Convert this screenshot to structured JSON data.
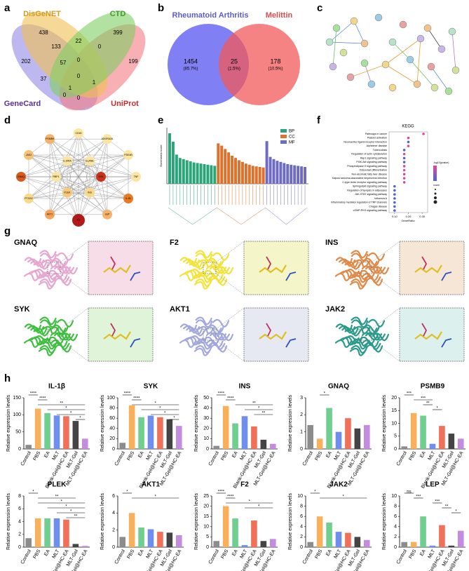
{
  "figure": {
    "panel_labels": [
      "a",
      "b",
      "c",
      "d",
      "e",
      "f",
      "g",
      "h"
    ],
    "venn4": {
      "sets": [
        {
          "name": "DisGeNET",
          "color": "#f0bf52"
        },
        {
          "name": "CTD",
          "color": "#7fcf62"
        },
        {
          "name": "GeneCard",
          "color": "#9189e6"
        },
        {
          "name": "UniProt",
          "color": "#f47b83"
        }
      ],
      "counts": [
        438,
        399,
        133,
        22,
        0,
        202,
        57,
        0,
        199,
        37,
        0,
        1,
        1,
        0,
        0
      ]
    },
    "venn2": {
      "sets": [
        {
          "name": "Rheumatoid Arthritis",
          "color": "#6a6af2"
        },
        {
          "name": "Melittin",
          "color": "#f25a5a"
        }
      ],
      "counts": [
        1454,
        25,
        178
      ],
      "percents": [
        "(85.7%)",
        "(1.5%)",
        "(10.5%)"
      ]
    },
    "network_d": {
      "nodes": [
        "CD40",
        "ADORA2A",
        "PDE4B",
        "TNF",
        "IL1B",
        "LEP",
        "F2",
        "AKT1",
        "PTGS2",
        "GNAQ",
        "JAK2",
        "PSMB9",
        "SYK",
        "INS",
        "PLEK",
        "RBP1",
        "IL10RA",
        "ELANE"
      ]
    },
    "go": {
      "ylabel": "Enrichment score",
      "series": [
        {
          "name": "BP",
          "color": "#2aa57a",
          "values": [
            9,
            7.5,
            5.2,
            4.6,
            4.4,
            4.2,
            4,
            3.8,
            3.7,
            3.6,
            3.5,
            3.4,
            3.3,
            3.2
          ]
        },
        {
          "name": "CC",
          "color": "#e0702a",
          "values": [
            7.2,
            6.8,
            6.2,
            5.6,
            5,
            4.6,
            4.2,
            3.9,
            3.6,
            3.4,
            3.2,
            3.1,
            3,
            2.9
          ]
        },
        {
          "name": "MF",
          "color": "#6e6cc0",
          "values": [
            7.6,
            4.8,
            4.4,
            4.1,
            3.9,
            3.7,
            3.5,
            3.4,
            3.3,
            3.2,
            3.1,
            3
          ]
        }
      ]
    },
    "kegg": {
      "title": "KEGG",
      "xlabel": "GeneRatio",
      "xlim": [
        0.06,
        0.34
      ],
      "xticks": [
        {
          "value": 0.1,
          "label": "0.10"
        },
        {
          "value": 0.2,
          "label": "0.20"
        },
        {
          "value": 0.3,
          "label": "0.30"
        }
      ],
      "legend_color_title": "-log10(pvalue)",
      "legend_size_title": "count",
      "pathways": [
        "Pathways in cancer",
        "Platelet activation",
        "Neuroactive ligand-receptor interaction",
        "Alzheimer disease",
        "Tuberculosis",
        "Regulation of actin cytoskeleton",
        "Rap1 signaling pathway",
        "PI3K-Akt signaling pathway",
        "Phospholipase D signaling pathway",
        "Osteoclast differentiation",
        "Non-alcoholic fatty liver disease",
        "Kaposi sarcoma-associated herpesvirus infection",
        "C-type lectin receptor signaling pathway",
        "Sphingolipid signaling pathway",
        "Regulation of lipolysis in adipocytes",
        "JAK-STAT signaling pathway",
        "Influenza A",
        "Inflammatory mediator regulation of TRP channels",
        "Chagas disease",
        "cGMP-PKG signaling pathway"
      ],
      "gene_ratio": [
        0.31,
        0.2,
        0.2,
        0.2,
        0.17,
        0.17,
        0.17,
        0.17,
        0.17,
        0.17,
        0.17,
        0.17,
        0.17,
        0.1,
        0.1,
        0.1,
        0.1,
        0.1,
        0.1,
        0.1
      ],
      "colors": [
        "#e8459a",
        "#d9488f",
        "#5060d0",
        "#d0508a",
        "#5b5fd0",
        "#c75495",
        "#5a60d0",
        "#4b63d2",
        "#d84b8c",
        "#c55896",
        "#d84a8d",
        "#cc5393",
        "#d6488e",
        "#4a66d4",
        "#4a66d4",
        "#4a66d4",
        "#4a66d4",
        "#4a66d4",
        "#4a66d4",
        "#4a66d4"
      ]
    },
    "docking": [
      "GNAQ",
      "F2",
      "INS",
      "SYK",
      "AKT1",
      "JAK2"
    ]
  },
  "chart_data": [
    {
      "type": "bar",
      "title": "IL-1β",
      "ylabel": "Relative expression levels",
      "categories": [
        "Control",
        "PBS",
        "EA",
        "MLT",
        "Blank-Gel@HC-EA",
        "MLT-Gel",
        "MLT-Gel@HC-EA"
      ],
      "values": [
        12,
        118,
        105,
        98,
        96,
        82,
        30
      ],
      "ylim": [
        0,
        150
      ],
      "yticks": [
        0,
        50,
        100,
        150
      ],
      "significance": [
        {
          "label": "****",
          "from": 0,
          "to": 1
        },
        {
          "label": "****",
          "from": 1,
          "to": 2
        },
        {
          "label": "**",
          "from": 1,
          "to": 6
        },
        {
          "label": "*",
          "from": 2,
          "to": 6
        },
        {
          "label": "*",
          "from": 3,
          "to": 6
        },
        {
          "label": "*",
          "from": 5,
          "to": 6
        }
      ]
    },
    {
      "type": "bar",
      "title": "SYK",
      "ylabel": "Relative expression levels",
      "categories": [
        "Control",
        "PBS",
        "EA",
        "MLT",
        "Blank-Gel@HC-EA",
        "MLT-Gel",
        "MLT-Gel@HC-EA"
      ],
      "values": [
        12,
        85,
        62,
        65,
        62,
        58,
        45
      ],
      "ylim": [
        0,
        100
      ],
      "yticks": [
        0,
        20,
        40,
        60,
        80,
        100
      ],
      "significance": [
        {
          "label": "****",
          "from": 0,
          "to": 1
        },
        {
          "label": "****",
          "from": 1,
          "to": 2
        },
        {
          "label": "*",
          "from": 1,
          "to": 6
        },
        {
          "label": "*",
          "from": 2,
          "to": 6
        },
        {
          "label": "*",
          "from": 3,
          "to": 6
        },
        {
          "label": "*",
          "from": 5,
          "to": 6
        }
      ]
    },
    {
      "type": "bar",
      "title": "INS",
      "ylabel": "Relative expression levels",
      "categories": [
        "Control",
        "PBS",
        "EA",
        "MLT",
        "Blank-Gel@HC-EA",
        "MLT-Gel",
        "MLT-Gel@HC-EA"
      ],
      "values": [
        3,
        42,
        25,
        32,
        22,
        9,
        5
      ],
      "ylim": [
        0,
        50
      ],
      "yticks": [
        0,
        10,
        20,
        30,
        40,
        50
      ],
      "significance": [
        {
          "label": "****",
          "from": 0,
          "to": 1
        },
        {
          "label": "****",
          "from": 1,
          "to": 2
        },
        {
          "label": "**",
          "from": 2,
          "to": 6
        },
        {
          "label": "*",
          "from": 3,
          "to": 6
        },
        {
          "label": "**",
          "from": 4,
          "to": 6
        }
      ]
    },
    {
      "type": "bar",
      "title": "GNAQ",
      "ylabel": "Relative expression levels",
      "categories": [
        "Control",
        "PBS",
        "EA",
        "MLT",
        "Blank-Gel@HC-EA",
        "MLT-Gel",
        "MLT-Gel@HC-EA"
      ],
      "values": [
        1.4,
        0.6,
        2.4,
        1.0,
        1.8,
        1.2,
        1.4
      ],
      "ylim": [
        0,
        3
      ],
      "yticks": [
        0,
        1,
        2,
        3
      ],
      "significance": [
        {
          "label": "*",
          "from": 1,
          "to": 2
        }
      ]
    },
    {
      "type": "bar",
      "title": "PSMB9",
      "ylabel": "Relative expression levels",
      "categories": [
        "Control",
        "PBS",
        "EA",
        "MLT",
        "Blank-Gel@HC-EA",
        "MLT-Gel",
        "MLT-Gel@HC-EA"
      ],
      "values": [
        1,
        14,
        13,
        2,
        9,
        6,
        4
      ],
      "ylim": [
        0,
        20
      ],
      "yticks": [
        0,
        5,
        10,
        15,
        20
      ],
      "significance": [
        {
          "label": "***",
          "from": 0,
          "to": 1
        },
        {
          "label": "***",
          "from": 1,
          "to": 3
        },
        {
          "label": "**",
          "from": 2,
          "to": 3
        },
        {
          "label": "*",
          "from": 3,
          "to": 4
        }
      ]
    },
    {
      "type": "bar",
      "title": "PLEK",
      "ylabel": "Relative expression levels",
      "categories": [
        "Control",
        "PBS",
        "EA",
        "MLT",
        "Blank-Gel@HC-EA",
        "MLT-Gel",
        "MLT-Gel@HC-EA"
      ],
      "values": [
        1.4,
        4.5,
        4.5,
        4.5,
        4.3,
        0.5,
        0.2
      ],
      "ylim": [
        0,
        8
      ],
      "yticks": [
        0,
        2,
        4,
        6,
        8
      ],
      "significance": [
        {
          "label": "*",
          "from": 0,
          "to": 1
        },
        {
          "label": "**",
          "from": 1,
          "to": 5
        },
        {
          "label": "*",
          "from": 1,
          "to": 6
        },
        {
          "label": "*",
          "from": 2,
          "to": 6
        },
        {
          "label": "*",
          "from": 3,
          "to": 6
        },
        {
          "label": "**",
          "from": 4,
          "to": 6
        }
      ]
    },
    {
      "type": "bar",
      "title": "AKT1",
      "ylabel": "Relative expression levels",
      "categories": [
        "Control",
        "PBS",
        "EA",
        "MLT",
        "Blank-Gel@HC-EA",
        "MLT-Gel",
        "MLT-Gel@HC-EA"
      ],
      "values": [
        1.2,
        4,
        2.3,
        2.1,
        1.8,
        1.7,
        1.4
      ],
      "ylim": [
        0,
        6
      ],
      "yticks": [
        0,
        2,
        4,
        6
      ],
      "significance": [
        {
          "label": "*",
          "from": 0,
          "to": 1
        },
        {
          "label": "*",
          "from": 1,
          "to": 6
        }
      ]
    },
    {
      "type": "bar",
      "title": "F2",
      "ylabel": "Relative expression levels",
      "categories": [
        "Control",
        "PBS",
        "EA",
        "MLT",
        "Blank-Gel@HC-EA",
        "MLT-Gel",
        "MLT-Gel@HC-EA"
      ],
      "values": [
        3,
        20,
        14,
        1,
        13,
        3,
        4
      ],
      "ylim": [
        0,
        25
      ],
      "yticks": [
        0,
        5,
        10,
        15,
        20,
        25
      ],
      "significance": [
        {
          "label": "****",
          "from": 0,
          "to": 1
        },
        {
          "label": "****",
          "from": 1,
          "to": 2
        },
        {
          "label": "*",
          "from": 1,
          "to": 6
        },
        {
          "label": "*",
          "from": 3,
          "to": 6
        }
      ]
    },
    {
      "type": "bar",
      "title": "JAK2",
      "ylabel": "Relative expression levels",
      "categories": [
        "Control",
        "PBS",
        "EA",
        "MLT",
        "Blank-Gel@HC-EA",
        "MLT-Gel",
        "MLT-Gel@HC-EA"
      ],
      "values": [
        1,
        6,
        4.8,
        3,
        2.8,
        2,
        1.4
      ],
      "ylim": [
        0,
        10
      ],
      "yticks": [
        0,
        2,
        4,
        6,
        8,
        10
      ],
      "significance": [
        {
          "label": "*",
          "from": 0,
          "to": 1
        },
        {
          "label": "*",
          "from": 1,
          "to": 6
        }
      ]
    },
    {
      "type": "bar",
      "title": "LEP",
      "ylabel": "Relative expression levels",
      "categories": [
        "Control",
        "PBS",
        "EA",
        "MLT",
        "Blank-Gel@HC-EA",
        "MLT-Gel",
        "MLT-Gel@HC-EA"
      ],
      "values": [
        1,
        1,
        6,
        0.3,
        4.3,
        0.3,
        3.2
      ],
      "ylim": [
        0,
        10
      ],
      "yticks": [
        0,
        2,
        4,
        6,
        8,
        10
      ],
      "significance": [
        {
          "label": "ns",
          "from": 0,
          "to": 1
        },
        {
          "label": "***",
          "from": 1,
          "to": 2
        },
        {
          "label": "***",
          "from": 3,
          "to": 4
        },
        {
          "label": "**",
          "from": 4,
          "to": 5
        },
        {
          "label": "*",
          "from": 5,
          "to": 6
        }
      ]
    }
  ]
}
